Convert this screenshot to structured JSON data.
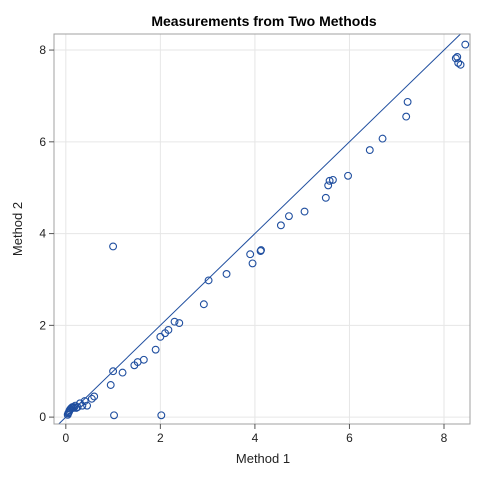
{
  "chart_data": {
    "type": "scatter",
    "title": "Measurements from Two Methods",
    "xlabel": "Method 1",
    "ylabel": "Method 2",
    "xlim": [
      -0.25,
      8.55
    ],
    "ylim": [
      -0.15,
      8.35
    ],
    "xticks": [
      0,
      2,
      4,
      6,
      8
    ],
    "yticks": [
      0,
      2,
      4,
      6,
      8
    ],
    "grid": true,
    "legend": "none",
    "identity_line": true,
    "colors": {
      "marker": "#1f4e9f",
      "line": "#1f4e9f",
      "grid": "#e6e6e6",
      "frame": "#a0a0a0"
    },
    "points": [
      {
        "x": 0.04,
        "y": 0.05
      },
      {
        "x": 0.05,
        "y": 0.08
      },
      {
        "x": 0.06,
        "y": 0.1
      },
      {
        "x": 0.07,
        "y": 0.12
      },
      {
        "x": 0.08,
        "y": 0.15
      },
      {
        "x": 0.1,
        "y": 0.18
      },
      {
        "x": 0.12,
        "y": 0.2
      },
      {
        "x": 0.14,
        "y": 0.22
      },
      {
        "x": 0.16,
        "y": 0.2
      },
      {
        "x": 0.18,
        "y": 0.22
      },
      {
        "x": 0.2,
        "y": 0.25
      },
      {
        "x": 0.22,
        "y": 0.2
      },
      {
        "x": 0.25,
        "y": 0.22
      },
      {
        "x": 0.3,
        "y": 0.3
      },
      {
        "x": 0.35,
        "y": 0.25
      },
      {
        "x": 0.45,
        "y": 0.25
      },
      {
        "x": 0.4,
        "y": 0.35
      },
      {
        "x": 0.55,
        "y": 0.4
      },
      {
        "x": 0.6,
        "y": 0.45
      },
      {
        "x": 0.95,
        "y": 0.7
      },
      {
        "x": 1.0,
        "y": 1.0
      },
      {
        "x": 1.0,
        "y": 3.72
      },
      {
        "x": 1.02,
        "y": 0.04
      },
      {
        "x": 1.2,
        "y": 0.97
      },
      {
        "x": 1.45,
        "y": 1.13
      },
      {
        "x": 1.52,
        "y": 1.2
      },
      {
        "x": 1.65,
        "y": 1.25
      },
      {
        "x": 1.9,
        "y": 1.47
      },
      {
        "x": 2.0,
        "y": 1.75
      },
      {
        "x": 2.02,
        "y": 0.04
      },
      {
        "x": 2.1,
        "y": 1.83
      },
      {
        "x": 2.17,
        "y": 1.9
      },
      {
        "x": 2.3,
        "y": 2.08
      },
      {
        "x": 2.4,
        "y": 2.05
      },
      {
        "x": 2.92,
        "y": 2.46
      },
      {
        "x": 3.02,
        "y": 2.98
      },
      {
        "x": 3.4,
        "y": 3.12
      },
      {
        "x": 3.9,
        "y": 3.55
      },
      {
        "x": 3.95,
        "y": 3.35
      },
      {
        "x": 4.12,
        "y": 3.62
      },
      {
        "x": 4.13,
        "y": 3.64
      },
      {
        "x": 4.55,
        "y": 4.18
      },
      {
        "x": 4.72,
        "y": 4.38
      },
      {
        "x": 5.05,
        "y": 4.48
      },
      {
        "x": 5.5,
        "y": 4.78
      },
      {
        "x": 5.55,
        "y": 5.05
      },
      {
        "x": 5.58,
        "y": 5.15
      },
      {
        "x": 5.65,
        "y": 5.17
      },
      {
        "x": 5.97,
        "y": 5.26
      },
      {
        "x": 6.43,
        "y": 5.82
      },
      {
        "x": 6.7,
        "y": 6.07
      },
      {
        "x": 7.2,
        "y": 6.55
      },
      {
        "x": 7.23,
        "y": 6.87
      },
      {
        "x": 8.25,
        "y": 7.82
      },
      {
        "x": 8.28,
        "y": 7.85
      },
      {
        "x": 8.3,
        "y": 7.72
      },
      {
        "x": 8.35,
        "y": 7.68
      },
      {
        "x": 8.45,
        "y": 8.12
      }
    ]
  }
}
